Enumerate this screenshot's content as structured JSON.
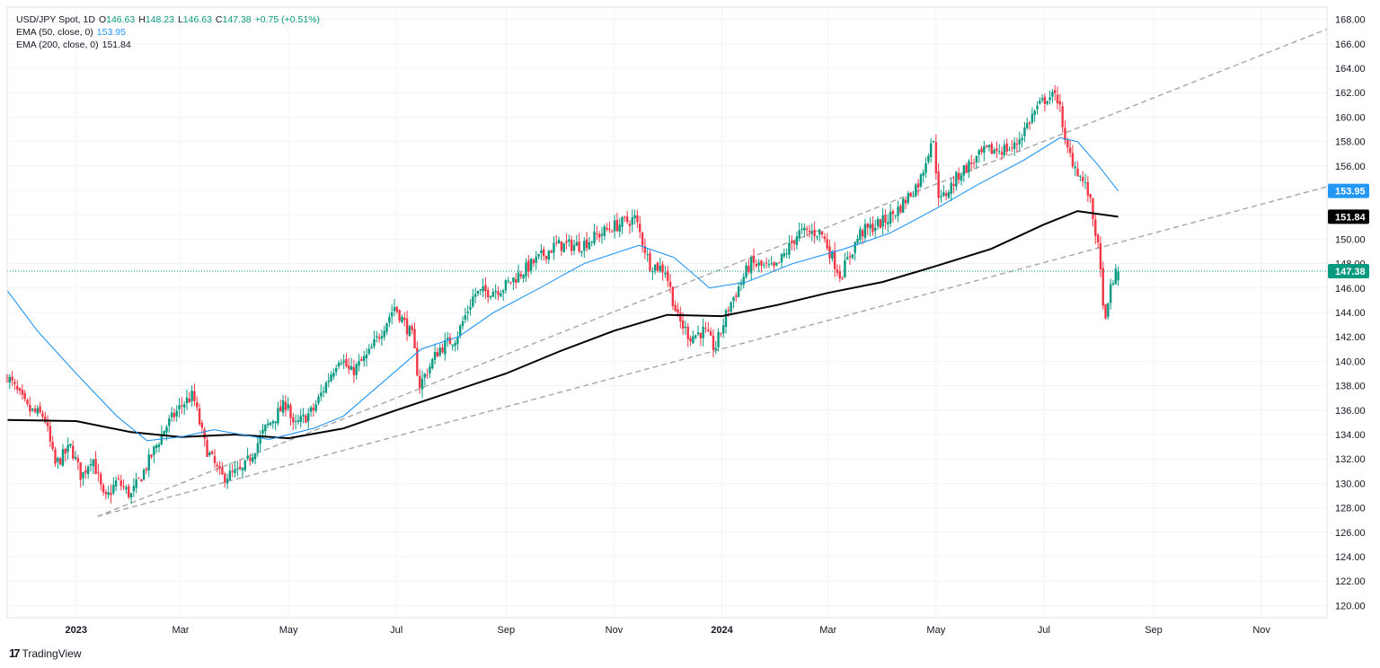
{
  "header": {
    "symbol": "USD/JPY Spot, 1D",
    "o_label": "O",
    "o": "146.63",
    "h_label": "H",
    "h": "148.23",
    "l_label": "L",
    "l": "146.63",
    "c_label": "C",
    "c": "147.38",
    "change": "+0.75 (+0.51%)",
    "ema50_label": "EMA (50, close, 0)",
    "ema50_value": "153.95",
    "ema200_label": "EMA (200, close, 0)",
    "ema200_value": "151.84"
  },
  "brand": "TradingView",
  "colors": {
    "up": "#089981",
    "down": "#f23645",
    "ema50": "#2196f3",
    "ema200": "#000000",
    "trend": "#a6a6a6",
    "grid": "#f0f3fa"
  },
  "chart_data": {
    "type": "candlestick",
    "title": "",
    "ylim": [
      119,
      169
    ],
    "y_ticks": [
      "120.00",
      "122.00",
      "124.00",
      "126.00",
      "128.00",
      "130.00",
      "132.00",
      "134.00",
      "136.00",
      "138.00",
      "140.00",
      "142.00",
      "144.00",
      "146.00",
      "148.00",
      "150.00",
      "152.00",
      "154.00",
      "156.00",
      "158.00",
      "160.00",
      "162.00",
      "164.00",
      "166.00",
      "168.00"
    ],
    "x_range": [
      "2022-11-23",
      "2024-12-08"
    ],
    "x_ticks": [
      {
        "date": "2023-01-01",
        "label": "2023",
        "bold": true
      },
      {
        "date": "2023-03-01",
        "label": "Mar",
        "bold": false
      },
      {
        "date": "2023-05-01",
        "label": "May",
        "bold": false
      },
      {
        "date": "2023-07-01",
        "label": "Jul",
        "bold": false
      },
      {
        "date": "2023-09-01",
        "label": "Sep",
        "bold": false
      },
      {
        "date": "2023-11-01",
        "label": "Nov",
        "bold": false
      },
      {
        "date": "2024-01-01",
        "label": "2024",
        "bold": true
      },
      {
        "date": "2024-03-01",
        "label": "Mar",
        "bold": false
      },
      {
        "date": "2024-05-01",
        "label": "May",
        "bold": false
      },
      {
        "date": "2024-07-01",
        "label": "Jul",
        "bold": false
      },
      {
        "date": "2024-09-01",
        "label": "Sep",
        "bold": false
      },
      {
        "date": "2024-11-01",
        "label": "Nov",
        "bold": false
      }
    ],
    "price_path": [
      [
        "2022-11-23",
        138.8
      ],
      [
        "2022-12-05",
        136.0
      ],
      [
        "2022-12-14",
        135.5
      ],
      [
        "2022-12-20",
        131.5
      ],
      [
        "2022-12-29",
        133.0
      ],
      [
        "2023-01-04",
        130.5
      ],
      [
        "2023-01-10",
        132.3
      ],
      [
        "2023-01-17",
        128.5
      ],
      [
        "2023-01-24",
        130.2
      ],
      [
        "2023-02-01",
        129.0
      ],
      [
        "2023-02-10",
        131.5
      ],
      [
        "2023-02-20",
        134.5
      ],
      [
        "2023-03-02",
        136.5
      ],
      [
        "2023-03-08",
        137.2
      ],
      [
        "2023-03-15",
        133.0
      ],
      [
        "2023-03-24",
        130.5
      ],
      [
        "2023-04-05",
        131.0
      ],
      [
        "2023-04-18",
        134.5
      ],
      [
        "2023-05-01",
        136.8
      ],
      [
        "2023-05-03",
        134.5
      ],
      [
        "2023-05-15",
        136.0
      ],
      [
        "2023-05-30",
        140.5
      ],
      [
        "2023-06-05",
        139.0
      ],
      [
        "2023-06-15",
        140.5
      ],
      [
        "2023-06-30",
        144.5
      ],
      [
        "2023-07-10",
        142.0
      ],
      [
        "2023-07-14",
        138.0
      ],
      [
        "2023-07-25",
        141.0
      ],
      [
        "2023-08-04",
        142.0
      ],
      [
        "2023-08-14",
        145.5
      ],
      [
        "2023-08-30",
        146.0
      ],
      [
        "2023-09-15",
        147.9
      ],
      [
        "2023-09-29",
        149.5
      ],
      [
        "2023-10-13",
        149.5
      ],
      [
        "2023-10-31",
        151.0
      ],
      [
        "2023-11-13",
        151.7
      ],
      [
        "2023-11-21",
        148.0
      ],
      [
        "2023-11-30",
        147.5
      ],
      [
        "2023-12-07",
        143.5
      ],
      [
        "2023-12-14",
        142.0
      ],
      [
        "2023-12-22",
        142.5
      ],
      [
        "2023-12-28",
        141.0
      ],
      [
        "2024-01-05",
        144.5
      ],
      [
        "2024-01-17",
        148.0
      ],
      [
        "2024-01-31",
        147.5
      ],
      [
        "2024-02-13",
        150.5
      ],
      [
        "2024-02-26",
        150.6
      ],
      [
        "2024-03-08",
        147.0
      ],
      [
        "2024-03-19",
        150.5
      ],
      [
        "2024-04-02",
        151.5
      ],
      [
        "2024-04-10",
        152.5
      ],
      [
        "2024-04-22",
        154.8
      ],
      [
        "2024-04-29",
        158.5
      ],
      [
        "2024-05-03",
        153.0
      ],
      [
        "2024-05-15",
        155.5
      ],
      [
        "2024-05-29",
        157.2
      ],
      [
        "2024-06-14",
        157.5
      ],
      [
        "2024-06-26",
        160.5
      ],
      [
        "2024-07-03",
        161.7
      ],
      [
        "2024-07-10",
        161.5
      ],
      [
        "2024-07-12",
        158.0
      ],
      [
        "2024-07-18",
        156.2
      ],
      [
        "2024-07-26",
        153.8
      ],
      [
        "2024-07-31",
        150.0
      ],
      [
        "2024-08-05",
        142.8
      ],
      [
        "2024-08-08",
        146.5
      ],
      [
        "2024-08-12",
        147.38
      ]
    ],
    "candle_count": 440,
    "ema50_path": [
      [
        "2022-11-23",
        145.8
      ],
      [
        "2022-12-10",
        142.5
      ],
      [
        "2023-01-01",
        139.0
      ],
      [
        "2023-01-24",
        135.5
      ],
      [
        "2023-02-10",
        133.5
      ],
      [
        "2023-03-01",
        133.8
      ],
      [
        "2023-03-20",
        134.4
      ],
      [
        "2023-04-20",
        133.6
      ],
      [
        "2023-05-15",
        134.5
      ],
      [
        "2023-06-01",
        135.5
      ],
      [
        "2023-06-25",
        138.5
      ],
      [
        "2023-07-15",
        141.0
      ],
      [
        "2023-08-05",
        142.0
      ],
      [
        "2023-08-25",
        144.0
      ],
      [
        "2023-09-20",
        146.0
      ],
      [
        "2023-10-15",
        148.0
      ],
      [
        "2023-11-15",
        149.5
      ],
      [
        "2023-12-05",
        148.5
      ],
      [
        "2023-12-25",
        146.0
      ],
      [
        "2024-01-15",
        146.5
      ],
      [
        "2024-02-10",
        148.0
      ],
      [
        "2024-03-10",
        149.2
      ],
      [
        "2024-04-05",
        150.5
      ],
      [
        "2024-05-01",
        152.5
      ],
      [
        "2024-05-25",
        154.5
      ],
      [
        "2024-06-20",
        156.5
      ],
      [
        "2024-07-10",
        158.3
      ],
      [
        "2024-07-20",
        158.0
      ],
      [
        "2024-08-01",
        156.0
      ],
      [
        "2024-08-12",
        153.95
      ]
    ],
    "ema200_path": [
      [
        "2022-11-23",
        135.2
      ],
      [
        "2023-01-01",
        135.1
      ],
      [
        "2023-02-01",
        134.2
      ],
      [
        "2023-03-01",
        133.8
      ],
      [
        "2023-04-01",
        134.0
      ],
      [
        "2023-05-01",
        133.7
      ],
      [
        "2023-06-01",
        134.5
      ],
      [
        "2023-07-01",
        136.0
      ],
      [
        "2023-08-01",
        137.5
      ],
      [
        "2023-09-01",
        139.0
      ],
      [
        "2023-10-01",
        140.8
      ],
      [
        "2023-11-01",
        142.5
      ],
      [
        "2023-12-01",
        143.8
      ],
      [
        "2024-01-01",
        143.7
      ],
      [
        "2024-02-01",
        144.6
      ],
      [
        "2024-03-01",
        145.6
      ],
      [
        "2024-04-01",
        146.5
      ],
      [
        "2024-05-01",
        147.8
      ],
      [
        "2024-06-01",
        149.2
      ],
      [
        "2024-07-01",
        151.2
      ],
      [
        "2024-07-20",
        152.3
      ],
      [
        "2024-08-12",
        151.84
      ]
    ],
    "trendlines": [
      {
        "from": [
          "2023-01-13",
          127.3
        ],
        "to": [
          "2024-12-08",
          167.2
        ]
      },
      {
        "from": [
          "2023-01-13",
          127.3
        ],
        "to": [
          "2024-12-08",
          154.3
        ]
      }
    ],
    "current_price": 147.38,
    "price_badges": [
      {
        "value": 153.95,
        "label": "153.95",
        "color": "#2196f3"
      },
      {
        "value": 151.84,
        "label": "151.84",
        "color": "#000000"
      },
      {
        "value": 147.38,
        "label": "147.38",
        "color": "#089981"
      }
    ]
  }
}
